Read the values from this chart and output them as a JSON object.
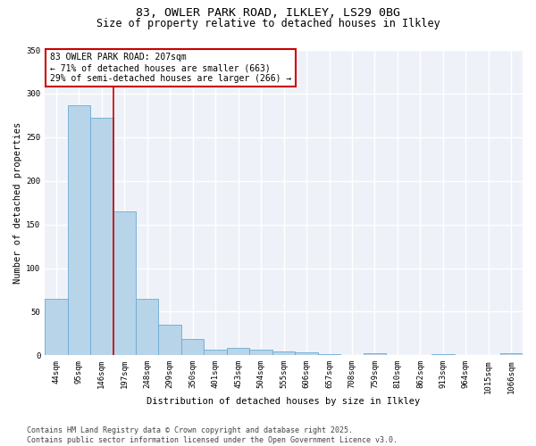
{
  "title_line1": "83, OWLER PARK ROAD, ILKLEY, LS29 0BG",
  "title_line2": "Size of property relative to detached houses in Ilkley",
  "xlabel": "Distribution of detached houses by size in Ilkley",
  "ylabel": "Number of detached properties",
  "categories": [
    "44sqm",
    "95sqm",
    "146sqm",
    "197sqm",
    "248sqm",
    "299sqm",
    "350sqm",
    "401sqm",
    "453sqm",
    "504sqm",
    "555sqm",
    "606sqm",
    "657sqm",
    "708sqm",
    "759sqm",
    "810sqm",
    "862sqm",
    "913sqm",
    "964sqm",
    "1015sqm",
    "1066sqm"
  ],
  "values": [
    65,
    287,
    272,
    165,
    65,
    35,
    19,
    7,
    9,
    6,
    4,
    3,
    1,
    0,
    2,
    0,
    0,
    1,
    0,
    0,
    2
  ],
  "bar_color": "#b8d4e8",
  "bar_edge_color": "#6aaad4",
  "vline_index": 3,
  "annotation_text": "83 OWLER PARK ROAD: 207sqm\n← 71% of detached houses are smaller (663)\n29% of semi-detached houses are larger (266) →",
  "annotation_box_color": "#ffffff",
  "annotation_box_edge_color": "#cc0000",
  "vline_color": "#cc0000",
  "ylim": [
    0,
    350
  ],
  "yticks": [
    0,
    50,
    100,
    150,
    200,
    250,
    300,
    350
  ],
  "footnote": "Contains HM Land Registry data © Crown copyright and database right 2025.\nContains public sector information licensed under the Open Government Licence v3.0.",
  "background_color": "#eef2f8",
  "grid_color": "#ffffff",
  "title_fontsize": 9.5,
  "subtitle_fontsize": 8.5,
  "axis_label_fontsize": 7.5,
  "tick_fontsize": 6.5,
  "annotation_fontsize": 7,
  "footnote_fontsize": 6
}
